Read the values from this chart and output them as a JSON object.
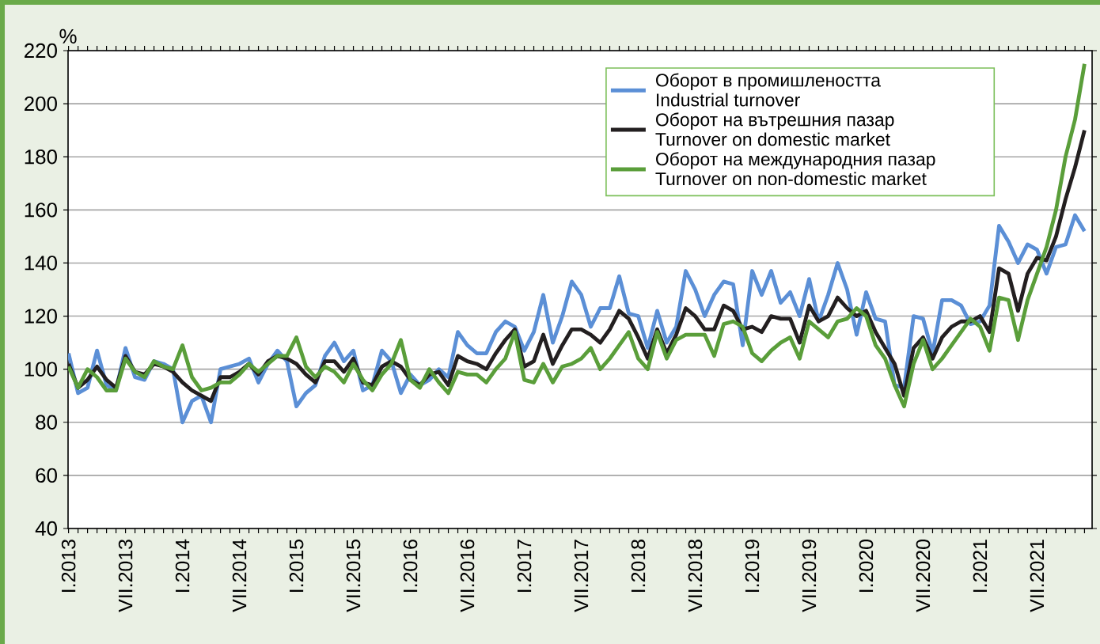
{
  "chart_data": {
    "type": "line",
    "ylabel": "%",
    "categories": [
      "I.2013",
      null,
      null,
      null,
      null,
      null,
      "VII.2013",
      null,
      null,
      null,
      null,
      null,
      "I.2014",
      null,
      null,
      null,
      null,
      null,
      "VII.2014",
      null,
      null,
      null,
      null,
      null,
      "I.2015",
      null,
      null,
      null,
      null,
      null,
      "VII.2015",
      null,
      null,
      null,
      null,
      null,
      "I.2016",
      null,
      null,
      null,
      null,
      null,
      "VII.2016",
      null,
      null,
      null,
      null,
      null,
      "I.2017",
      null,
      null,
      null,
      null,
      null,
      "VII.2017",
      null,
      null,
      null,
      null,
      null,
      "I.2018",
      null,
      null,
      null,
      null,
      null,
      "VII.2018",
      null,
      null,
      null,
      null,
      null,
      "I.2019",
      null,
      null,
      null,
      null,
      null,
      "VII.2019",
      null,
      null,
      null,
      null,
      null,
      "I.2020",
      null,
      null,
      null,
      null,
      null,
      "VII.2020",
      null,
      null,
      null,
      null,
      null,
      "I.2021",
      null,
      null,
      null,
      null,
      null,
      "VII.2021",
      null,
      null,
      null,
      null,
      null
    ],
    "series": [
      {
        "name": "Оборот в промишлеността Industrial turnover",
        "color": "#5b8fd6",
        "values": [
          106,
          91,
          93,
          107,
          94,
          92,
          108,
          97,
          96,
          103,
          102,
          100,
          80,
          88,
          90,
          80,
          100,
          101,
          102,
          104,
          95,
          102,
          107,
          103,
          86,
          91,
          94,
          105,
          110,
          103,
          107,
          92,
          94,
          107,
          103,
          91,
          98,
          94,
          96,
          100,
          97,
          114,
          109,
          106,
          106,
          114,
          118,
          116,
          107,
          114,
          128,
          110,
          120,
          133,
          128,
          116,
          123,
          123,
          135,
          121,
          120,
          108,
          122,
          110,
          116,
          137,
          130,
          120,
          128,
          133,
          132,
          109,
          137,
          128,
          137,
          125,
          129,
          120,
          134,
          118,
          128,
          140,
          130,
          113,
          129,
          119,
          118,
          94,
          93,
          120,
          119,
          106,
          126,
          126,
          124,
          117,
          118,
          124,
          154,
          148,
          140,
          147,
          145,
          136,
          146,
          147,
          158,
          152
        ]
      },
      {
        "name": "Оборот на вътрешния пазар Turnover on domestic market",
        "color": "#231f20",
        "values": [
          102,
          93,
          96,
          101,
          96,
          93,
          105,
          99,
          98,
          102,
          101,
          99,
          95,
          92,
          90,
          88,
          97,
          97,
          99,
          102,
          98,
          103,
          105,
          104,
          102,
          98,
          95,
          103,
          103,
          99,
          104,
          95,
          94,
          101,
          103,
          101,
          96,
          94,
          98,
          99,
          94,
          105,
          103,
          102,
          100,
          106,
          111,
          115,
          101,
          103,
          113,
          102,
          109,
          115,
          115,
          113,
          110,
          115,
          122,
          119,
          112,
          104,
          115,
          106,
          113,
          123,
          120,
          115,
          115,
          124,
          122,
          115,
          116,
          114,
          120,
          119,
          119,
          110,
          124,
          118,
          120,
          127,
          123,
          120,
          122,
          114,
          108,
          102,
          90,
          108,
          112,
          104,
          112,
          116,
          118,
          118,
          120,
          114,
          138,
          136,
          122,
          136,
          142,
          141,
          150,
          164,
          176,
          190
        ]
      },
      {
        "name": "Оборот на международния пазар Turnover on non-domestic market",
        "color": "#5a9e3a",
        "values": [
          101,
          93,
          100,
          97,
          92,
          92,
          104,
          99,
          97,
          103,
          101,
          100,
          109,
          97,
          92,
          93,
          95,
          95,
          98,
          102,
          99,
          102,
          105,
          105,
          112,
          101,
          97,
          101,
          99,
          95,
          102,
          96,
          92,
          98,
          102,
          111,
          96,
          93,
          100,
          95,
          91,
          99,
          98,
          98,
          95,
          100,
          104,
          114,
          96,
          95,
          102,
          95,
          101,
          102,
          104,
          108,
          100,
          104,
          109,
          114,
          104,
          100,
          114,
          104,
          111,
          113,
          113,
          113,
          105,
          117,
          118,
          116,
          106,
          103,
          107,
          110,
          112,
          104,
          118,
          115,
          112,
          118,
          119,
          123,
          120,
          109,
          104,
          94,
          86,
          102,
          111,
          100,
          104,
          109,
          114,
          119,
          116,
          107,
          127,
          126,
          111,
          126,
          136,
          146,
          160,
          180,
          194,
          215
        ]
      }
    ],
    "ylim": [
      40,
      220
    ],
    "yticks": [
      40,
      60,
      80,
      100,
      120,
      140,
      160,
      180,
      200,
      220
    ],
    "grid": "y",
    "legend": "top right"
  }
}
